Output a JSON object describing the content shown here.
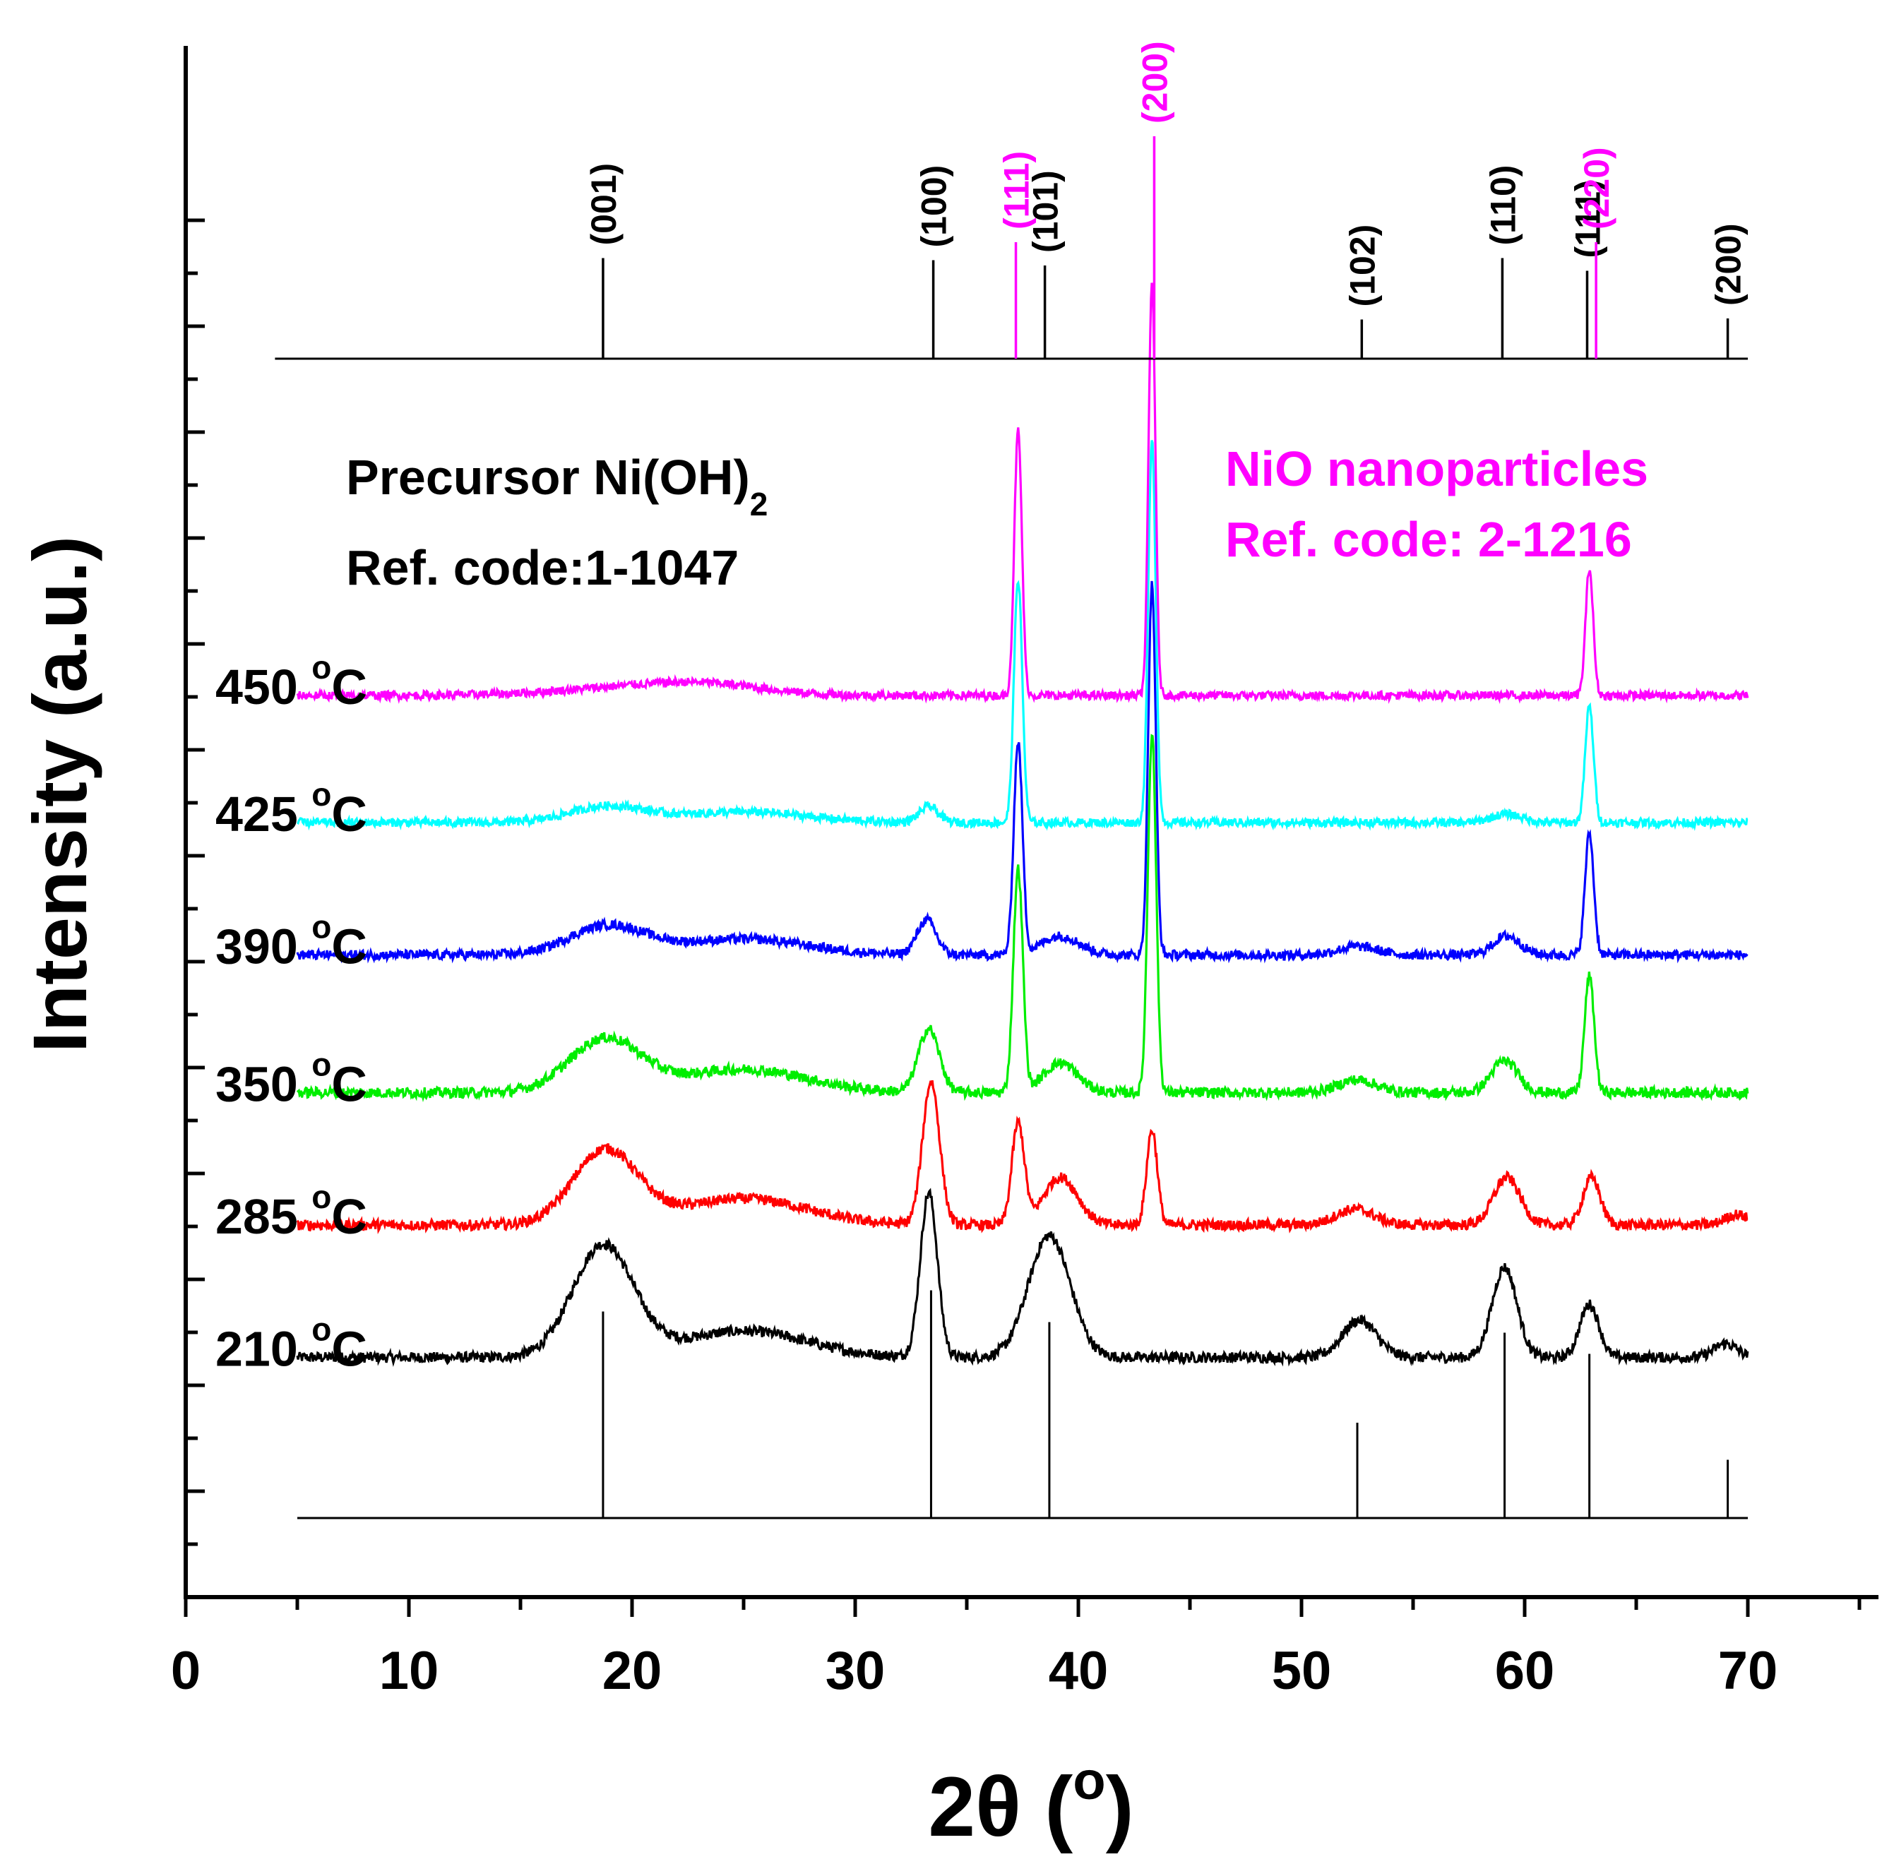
{
  "chart_data": {
    "type": "line",
    "title": "",
    "xlabel": "2θ (°)",
    "xlabel_main": "2θ (",
    "xlabel_sup": "o",
    "xlabel_close": ")",
    "ylabel": "Intensity (a.u.)",
    "xlim": [
      0,
      75
    ],
    "xticks": [
      0,
      10,
      20,
      30,
      40,
      50,
      60,
      70
    ],
    "xtick_labels": [
      "0",
      "10",
      "20",
      "30",
      "40",
      "50",
      "60",
      "70"
    ],
    "ylim": [
      0,
      14
    ],
    "y_ticks_unlabeled": true,
    "grid": false,
    "legend": {
      "precursor_line1": "Precursor Ni(OH)",
      "precursor_sub": "2",
      "precursor_line2": "Ref. code:1-1047",
      "nio_line1": "NiO nanoparticles",
      "nio_line2": "Ref. code: 2-1216",
      "precursor_color": "#000000",
      "nio_color": "#ff00ff"
    },
    "series": [
      {
        "name": "210 °C",
        "temp": "210",
        "unit": "C",
        "color": "#000000",
        "baseline": 1.45,
        "noise": 0.05,
        "peaks": [
          [
            18.7,
            1.05,
            1.6
          ],
          [
            33.3,
            1.55,
            0.45
          ],
          [
            38.7,
            1.15,
            1.1
          ],
          [
            52.6,
            0.35,
            0.9
          ],
          [
            59.1,
            0.85,
            0.65
          ],
          [
            62.9,
            0.5,
            0.5
          ],
          [
            69.0,
            0.13,
            0.6
          ]
        ],
        "broad": [
          [
            25,
            0.25,
            4
          ]
        ]
      },
      {
        "name": "285 °C",
        "temp": "285",
        "unit": "C",
        "color": "#ff0000",
        "baseline": 2.7,
        "noise": 0.05,
        "peaks": [
          [
            18.8,
            0.7,
            1.7
          ],
          [
            33.4,
            1.35,
            0.45
          ],
          [
            37.3,
            0.95,
            0.33
          ],
          [
            39.2,
            0.45,
            0.9
          ],
          [
            43.3,
            0.9,
            0.28
          ],
          [
            52.4,
            0.15,
            1.0
          ],
          [
            59.2,
            0.45,
            0.7
          ],
          [
            63.0,
            0.45,
            0.45
          ],
          [
            69.5,
            0.1,
            0.6
          ]
        ],
        "broad": [
          [
            25,
            0.25,
            4
          ]
        ]
      },
      {
        "name": "350 °C",
        "temp": "350",
        "unit": "C",
        "color": "#00ee00",
        "baseline": 3.95,
        "noise": 0.05,
        "peaks": [
          [
            18.8,
            0.5,
            1.9
          ],
          [
            33.3,
            0.6,
            0.55
          ],
          [
            37.3,
            2.1,
            0.25
          ],
          [
            39.2,
            0.28,
            0.9
          ],
          [
            43.3,
            3.4,
            0.22
          ],
          [
            52.5,
            0.12,
            1.0
          ],
          [
            59.1,
            0.3,
            0.7
          ],
          [
            62.9,
            1.1,
            0.25
          ]
        ],
        "broad": [
          [
            25,
            0.22,
            4
          ]
        ]
      },
      {
        "name": "390 °C",
        "temp": "390",
        "unit": "C",
        "color": "#0000ff",
        "baseline": 5.25,
        "noise": 0.045,
        "peaks": [
          [
            18.9,
            0.27,
            2.0
          ],
          [
            33.2,
            0.33,
            0.5
          ],
          [
            37.3,
            2.0,
            0.23
          ],
          [
            39.2,
            0.18,
            1.0
          ],
          [
            43.3,
            3.5,
            0.2
          ],
          [
            52.5,
            0.08,
            1.0
          ],
          [
            59.2,
            0.18,
            0.7
          ],
          [
            62.9,
            1.15,
            0.23
          ]
        ],
        "broad": [
          [
            25,
            0.15,
            4
          ]
        ]
      },
      {
        "name": "425 °C",
        "temp": "425",
        "unit": "C",
        "color": "#00ffff",
        "baseline": 6.5,
        "noise": 0.04,
        "peaks": [
          [
            18.9,
            0.15,
            2.0
          ],
          [
            33.3,
            0.15,
            0.5
          ],
          [
            37.3,
            2.3,
            0.22
          ],
          [
            43.3,
            3.6,
            0.2
          ],
          [
            59.2,
            0.08,
            0.8
          ],
          [
            62.9,
            1.1,
            0.22
          ]
        ],
        "broad": [
          [
            25,
            0.1,
            4
          ]
        ]
      },
      {
        "name": "450 °C",
        "temp": "450",
        "unit": "C",
        "color": "#ff00ff",
        "baseline": 7.7,
        "noise": 0.04,
        "peaks": [
          [
            20.0,
            0.07,
            4.0
          ],
          [
            23.5,
            0.08,
            3.0
          ],
          [
            37.3,
            2.5,
            0.2
          ],
          [
            43.3,
            3.9,
            0.18
          ],
          [
            62.9,
            1.2,
            0.2
          ]
        ],
        "broad": []
      }
    ],
    "reference_bottom": {
      "color": "#000000",
      "positions": [
        18.7,
        33.4,
        38.7,
        52.5,
        59.1,
        62.9,
        69.1
      ],
      "heights": [
        1.95,
        2.15,
        1.85,
        0.9,
        1.75,
        1.55,
        0.55
      ],
      "baseline": 0.0
    },
    "reference_top": {
      "hkl": [
        {
          "label": "(001)",
          "x": 18.7,
          "h": 0.95,
          "color": "#000000"
        },
        {
          "label": "(100)",
          "x": 33.5,
          "h": 0.93,
          "color": "#000000"
        },
        {
          "label": "(111)",
          "x": 37.2,
          "h": 1.1,
          "color": "#ff00ff"
        },
        {
          "label": "(101)",
          "x": 38.5,
          "h": 0.88,
          "color": "#000000"
        },
        {
          "label": "(200)",
          "x": 43.4,
          "h": 2.1,
          "color": "#ff00ff"
        },
        {
          "label": "(102)",
          "x": 52.7,
          "h": 0.37,
          "color": "#000000"
        },
        {
          "label": "(110)",
          "x": 59.0,
          "h": 0.95,
          "color": "#000000"
        },
        {
          "label": "(111)",
          "x": 62.8,
          "h": 0.83,
          "color": "#000000"
        },
        {
          "label": "(220)",
          "x": 63.2,
          "h": 1.1,
          "color": "#ff00ff"
        },
        {
          "label": "(200)",
          "x": 69.1,
          "h": 0.38,
          "color": "#000000"
        }
      ]
    }
  }
}
